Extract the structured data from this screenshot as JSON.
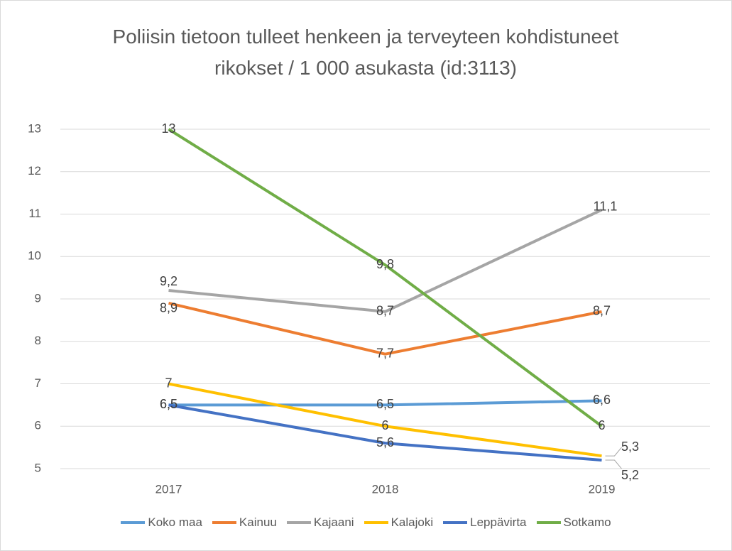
{
  "chart_data": {
    "type": "line",
    "title": "Poliisin tietoon tulleet henkeen ja terveyteen kohdistuneet rikokset / 1 000 asukasta (id:3113)",
    "categories": [
      "2017",
      "2018",
      "2019"
    ],
    "series": [
      {
        "name": "Koko maa",
        "color": "#5b9bd5",
        "values": [
          6.5,
          6.5,
          6.6
        ],
        "value_labels": [
          "6,5",
          "6,5",
          "6,6"
        ]
      },
      {
        "name": "Kainuu",
        "color": "#ed7d31",
        "values": [
          8.9,
          7.7,
          8.7
        ],
        "value_labels": [
          "8,9",
          "7,7",
          "8,7"
        ]
      },
      {
        "name": "Kajaani",
        "color": "#a5a5a5",
        "values": [
          9.2,
          8.7,
          11.1
        ],
        "value_labels": [
          "9,2",
          "8,7",
          "11,1"
        ]
      },
      {
        "name": "Kalajoki",
        "color": "#ffc000",
        "values": [
          7,
          6,
          5.3
        ],
        "value_labels": [
          "7",
          "6",
          "5,3"
        ]
      },
      {
        "name": "Leppävirta",
        "color": "#4472c4",
        "values": [
          6.5,
          5.6,
          5.2
        ],
        "value_labels": [
          "6,5",
          "5,6",
          "5,2"
        ]
      },
      {
        "name": "Sotkamo",
        "color": "#70ad47",
        "values": [
          13,
          9.8,
          6
        ],
        "value_labels": [
          "13",
          "9,8",
          "6"
        ]
      }
    ],
    "ylim": [
      5,
      13
    ],
    "yticks": [
      5,
      6,
      7,
      8,
      9,
      10,
      11,
      12,
      13
    ],
    "grid": true,
    "legend": "bottom"
  }
}
